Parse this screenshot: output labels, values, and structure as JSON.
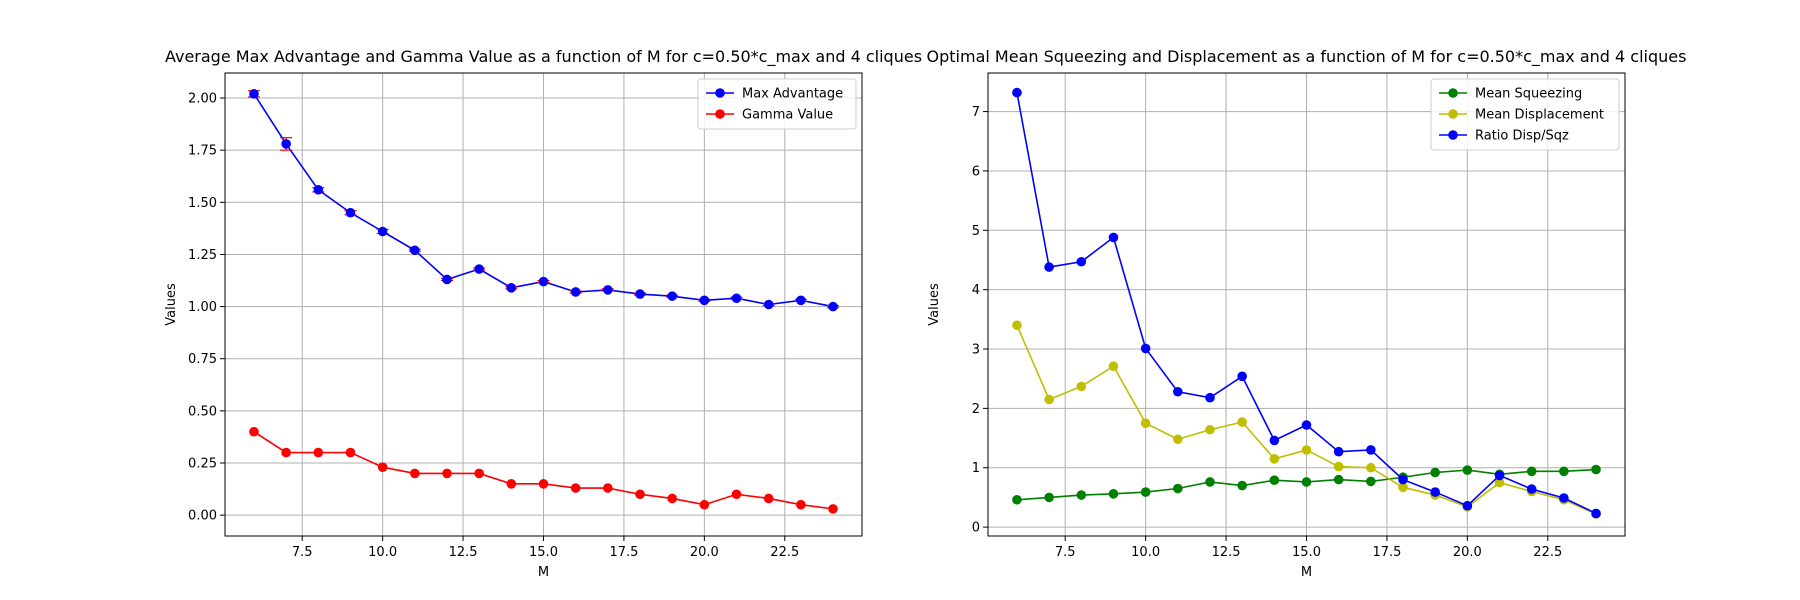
{
  "chart_data": [
    {
      "type": "line",
      "title": "Average Max Advantage and Gamma Value as a function of M for c=0.50*c_max and 4 cliques",
      "xlabel": "M",
      "ylabel": "Values",
      "xlim": [
        5.1,
        24.9
      ],
      "ylim": [
        -0.1,
        2.12
      ],
      "xticks": [
        7.5,
        10.0,
        12.5,
        15.0,
        17.5,
        20.0,
        22.5
      ],
      "xtick_labels": [
        "7.5",
        "10.0",
        "12.5",
        "15.0",
        "17.5",
        "20.0",
        "22.5"
      ],
      "yticks": [
        0.0,
        0.25,
        0.5,
        0.75,
        1.0,
        1.25,
        1.5,
        1.75,
        2.0
      ],
      "ytick_labels": [
        "0.00",
        "0.25",
        "0.50",
        "0.75",
        "1.00",
        "1.25",
        "1.50",
        "1.75",
        "2.00"
      ],
      "grid": true,
      "legend_position": "top-right",
      "x": [
        6,
        7,
        8,
        9,
        10,
        11,
        12,
        13,
        14,
        15,
        16,
        17,
        18,
        19,
        20,
        21,
        22,
        23,
        24
      ],
      "series": [
        {
          "name": "Max Advantage",
          "color": "#0000ff",
          "error_color": "#ff0000",
          "values": [
            2.02,
            1.78,
            1.56,
            1.45,
            1.36,
            1.27,
            1.13,
            1.18,
            1.09,
            1.12,
            1.07,
            1.08,
            1.06,
            1.05,
            1.03,
            1.04,
            1.01,
            1.03,
            1.0
          ],
          "errors": [
            0.015,
            0.03,
            0.01,
            0.01,
            0.01,
            0.005,
            0.005,
            0.005,
            0.005,
            0.005,
            0.005,
            0.005,
            0.005,
            0.005,
            0.005,
            0.005,
            0.005,
            0.005,
            0.005
          ]
        },
        {
          "name": "Gamma Value",
          "color": "#ff0000",
          "values": [
            0.4,
            0.3,
            0.3,
            0.3,
            0.23,
            0.2,
            0.2,
            0.2,
            0.15,
            0.15,
            0.13,
            0.13,
            0.1,
            0.08,
            0.05,
            0.1,
            0.08,
            0.05,
            0.03
          ]
        }
      ]
    },
    {
      "type": "line",
      "title": "Optimal Mean Squeezing and Displacement as a function of M for c=0.50*c_max and 4 cliques",
      "xlabel": "M",
      "ylabel": "Values",
      "xlim": [
        5.1,
        24.9
      ],
      "ylim": [
        -0.15,
        7.65
      ],
      "xticks": [
        7.5,
        10.0,
        12.5,
        15.0,
        17.5,
        20.0,
        22.5
      ],
      "xtick_labels": [
        "7.5",
        "10.0",
        "12.5",
        "15.0",
        "17.5",
        "20.0",
        "22.5"
      ],
      "yticks": [
        0,
        1,
        2,
        3,
        4,
        5,
        6,
        7
      ],
      "ytick_labels": [
        "0",
        "1",
        "2",
        "3",
        "4",
        "5",
        "6",
        "7"
      ],
      "grid": true,
      "legend_position": "top-right",
      "x": [
        6,
        7,
        8,
        9,
        10,
        11,
        12,
        13,
        14,
        15,
        16,
        17,
        18,
        19,
        20,
        21,
        22,
        23,
        24
      ],
      "series": [
        {
          "name": "Mean Squeezing",
          "color": "#008000",
          "values": [
            0.46,
            0.5,
            0.54,
            0.56,
            0.59,
            0.65,
            0.76,
            0.7,
            0.79,
            0.76,
            0.8,
            0.77,
            0.84,
            0.92,
            0.96,
            0.89,
            0.94,
            0.94,
            0.97
          ]
        },
        {
          "name": "Mean Displacement",
          "color": "#bfbf00",
          "values": [
            3.4,
            2.15,
            2.37,
            2.71,
            1.75,
            1.48,
            1.64,
            1.77,
            1.15,
            1.3,
            1.02,
            1.0,
            0.67,
            0.54,
            0.34,
            0.75,
            0.6,
            0.46,
            0.22
          ]
        },
        {
          "name": "Ratio Disp/Sqz",
          "color": "#0000ff",
          "values": [
            7.32,
            4.38,
            4.47,
            4.88,
            3.01,
            2.28,
            2.18,
            2.54,
            1.46,
            1.72,
            1.27,
            1.3,
            0.8,
            0.59,
            0.36,
            0.87,
            0.64,
            0.49,
            0.23
          ]
        }
      ]
    }
  ]
}
